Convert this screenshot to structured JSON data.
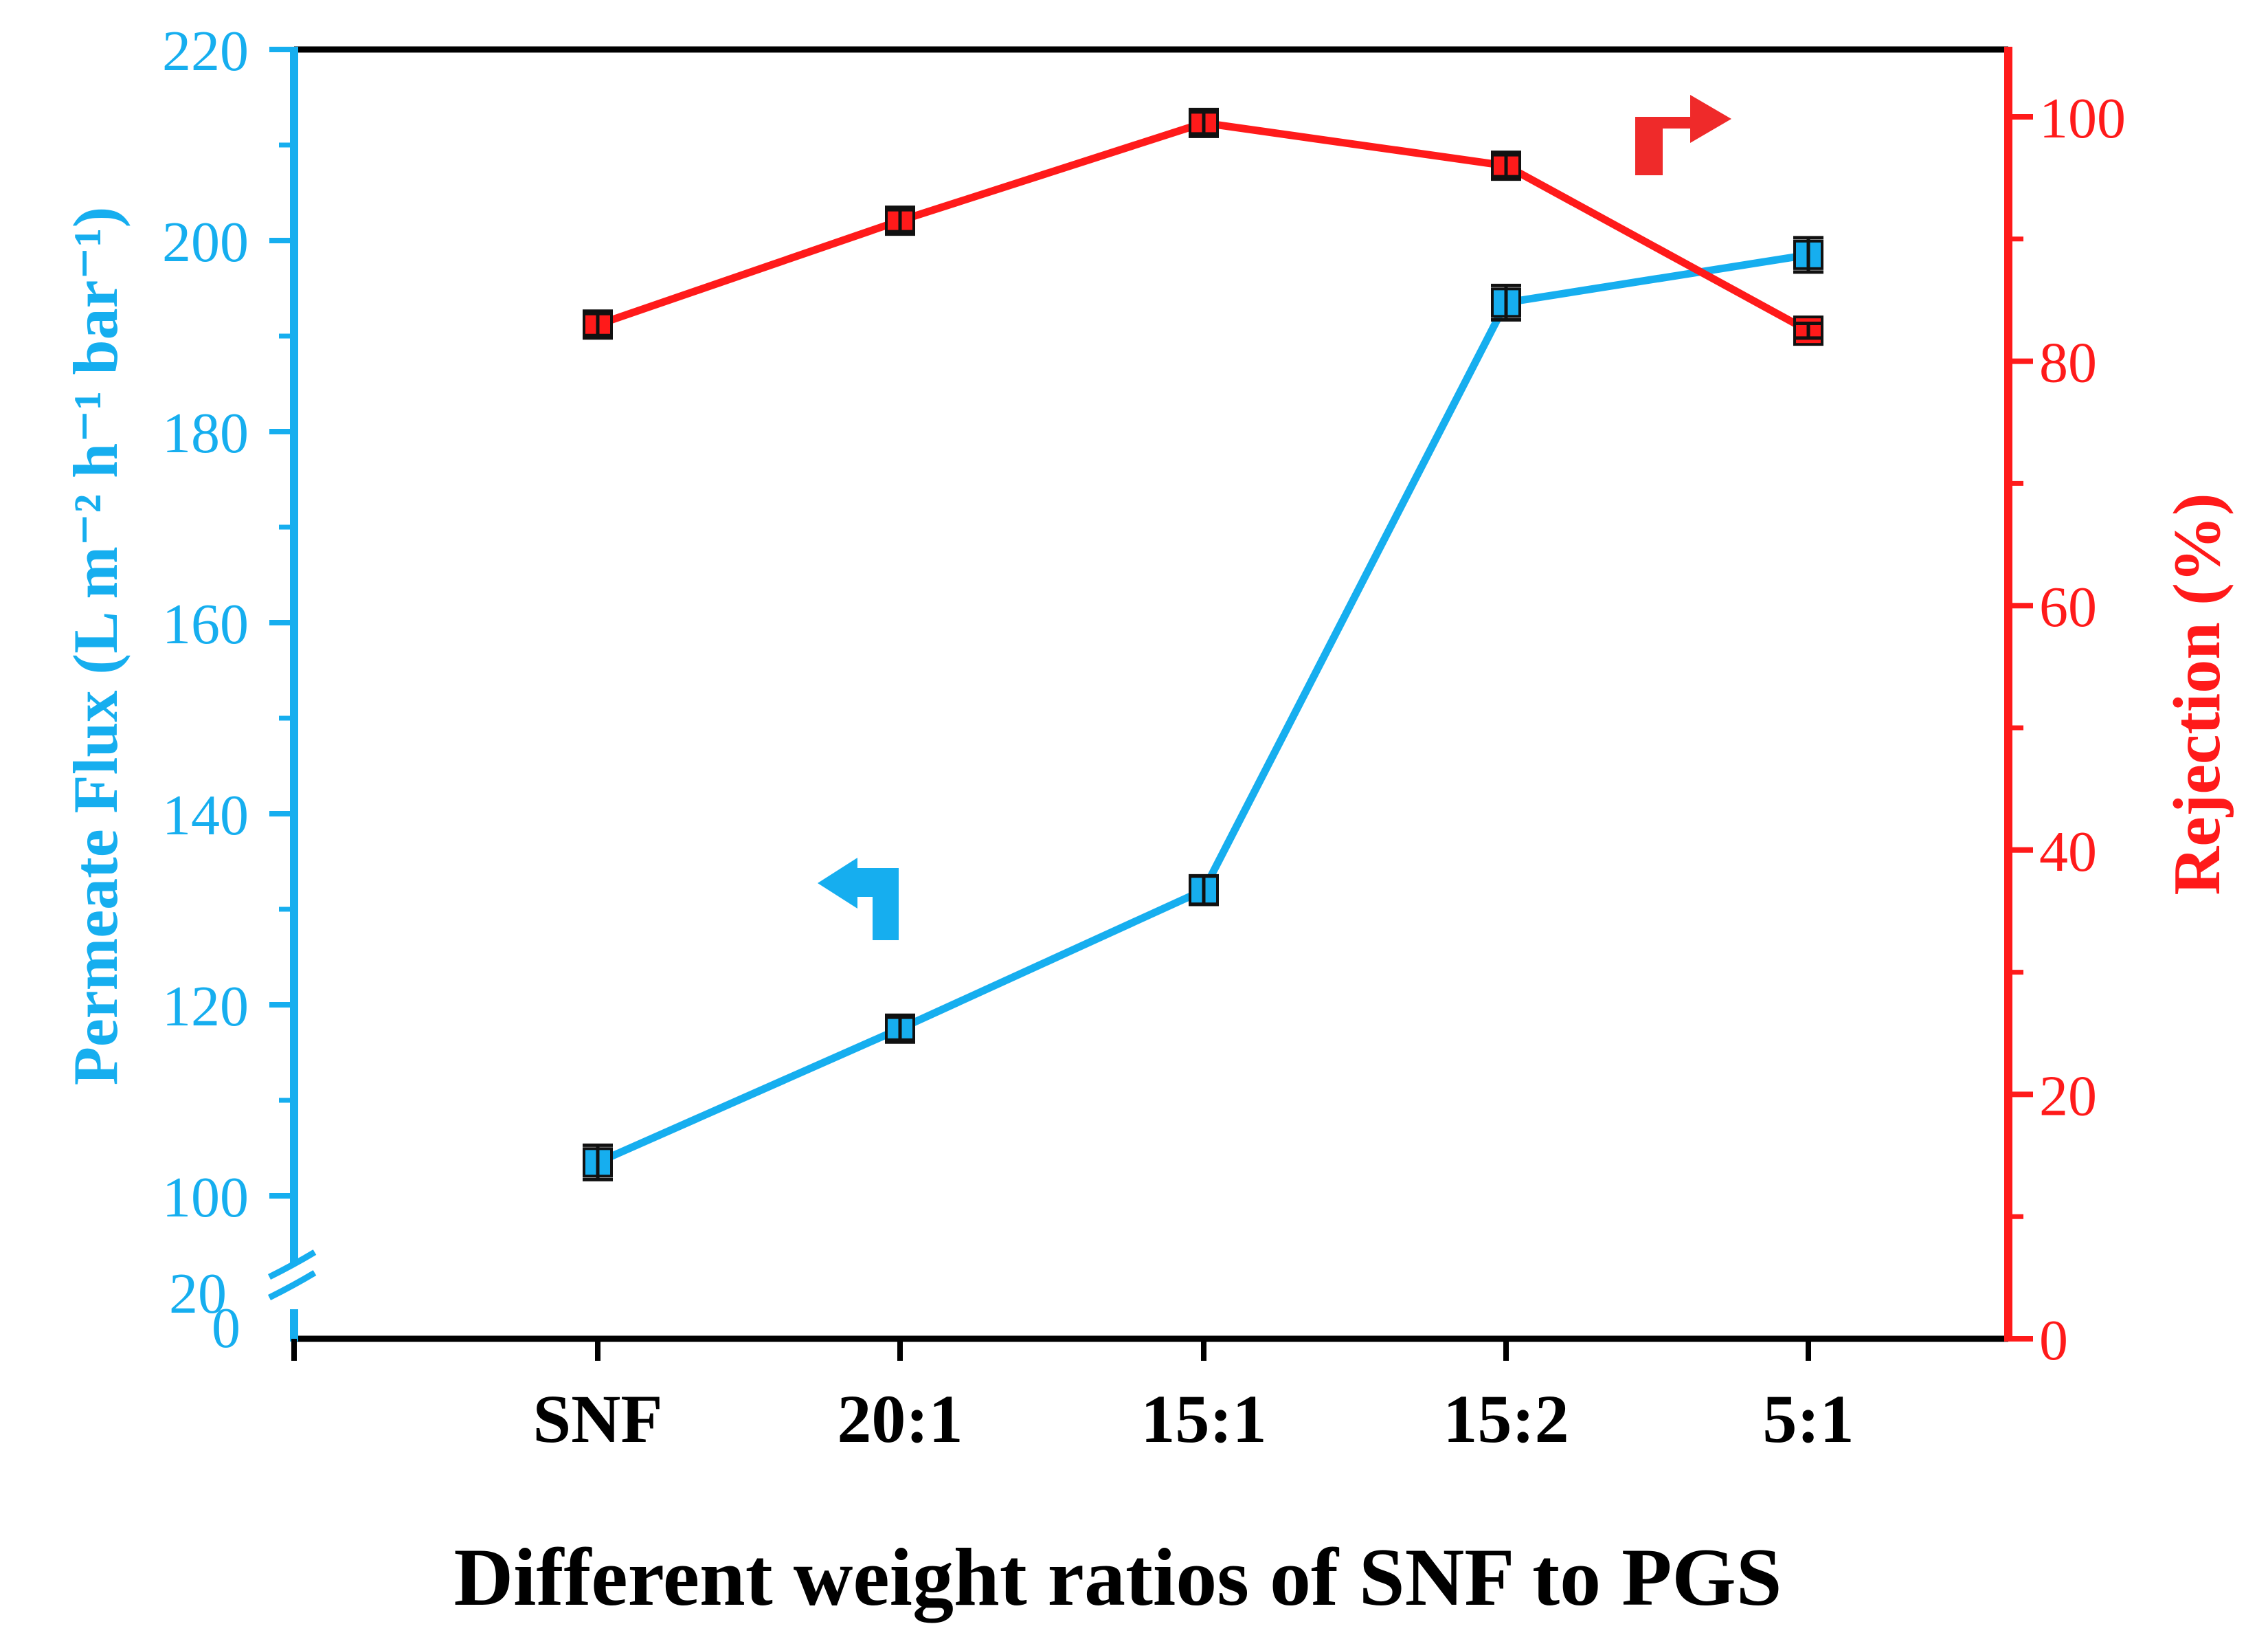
{
  "chart_data": {
    "type": "line",
    "xlabel": "Different weight ratios of SNF to PGS",
    "categories": [
      "SNF",
      "20:1",
      "15:1",
      "15:2",
      "5:1"
    ],
    "left_axis": {
      "label": "Permeate Flux (L m⁻² h⁻¹ bar⁻¹)",
      "ticks": [
        220,
        200,
        180,
        160,
        140,
        120,
        100
      ],
      "ylim": [
        87,
        220
      ],
      "broken": true,
      "break_labels": [
        "20",
        "0"
      ],
      "color": "#16aeef"
    },
    "right_axis": {
      "label": "Rejection (%)",
      "ticks": [
        0,
        20,
        40,
        60,
        80,
        100
      ],
      "ylim": [
        0,
        105
      ],
      "color": "#ff1a1a"
    },
    "series": [
      {
        "name": "Permeate Flux",
        "axis": "left",
        "color": "#16aeef",
        "values": [
          103.5,
          117.5,
          132,
          193.5,
          198.5
        ],
        "errors": [
          1.8,
          1.2,
          1.5,
          1.8,
          1.8
        ]
      },
      {
        "name": "Rejection",
        "axis": "right",
        "color": "#ff1a1a",
        "values": [
          83,
          91.5,
          99.5,
          96,
          82.5
        ],
        "errors": [
          0.9,
          0.9,
          0.9,
          0.9,
          0.6
        ]
      }
    ]
  }
}
